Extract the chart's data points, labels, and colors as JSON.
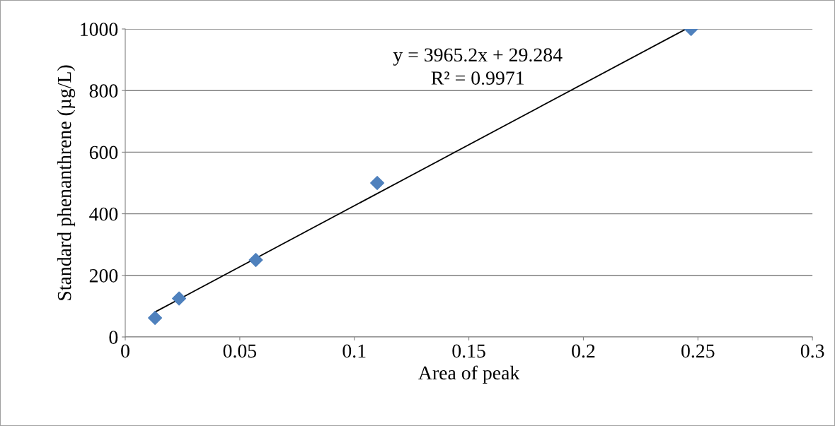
{
  "chart_data": {
    "type": "scatter",
    "xlabel": "Area of peak",
    "ylabel": "Standard phenanthrene (µg/L)",
    "series": [
      {
        "color": "#4f81bd",
        "marker": "diamond",
        "x": [
          0.013,
          0.0235,
          0.057,
          0.11,
          0.247
        ],
        "values": [
          62,
          125,
          250,
          500,
          1000
        ]
      },
      {
        "type": "line",
        "color": "#000000",
        "marker": "none",
        "line_style": "solid",
        "x": [
          0.013,
          0.2448
        ],
        "values": [
          81,
          1000
        ]
      }
    ],
    "annotations": [
      "y = 3965.2x + 29.284",
      "R² = 0.9971"
    ],
    "xlim": [
      0,
      0.3
    ],
    "xticks": [
      0,
      0.05,
      0.1,
      0.15,
      0.2,
      0.25,
      0.3
    ],
    "ylim": [
      0,
      1000
    ],
    "yticks": [
      0,
      200,
      400,
      600,
      800,
      1000
    ],
    "grid": "y",
    "legend": false
  }
}
